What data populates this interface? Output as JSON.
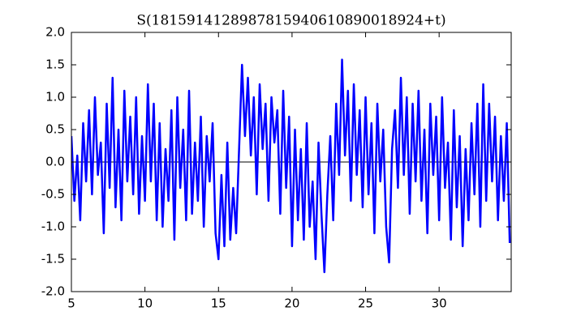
{
  "chart_data": {
    "type": "line",
    "title": "S(1815914128987815940610890018924+t)",
    "x": [
      5,
      5.2,
      5.4,
      5.6,
      5.8,
      6,
      6.2,
      6.4,
      6.6,
      6.8,
      7,
      7.2,
      7.4,
      7.6,
      7.8,
      8,
      8.2,
      8.4,
      8.6,
      8.8,
      9,
      9.2,
      9.4,
      9.6,
      9.8,
      10,
      10.2,
      10.4,
      10.6,
      10.8,
      11,
      11.2,
      11.4,
      11.6,
      11.8,
      12,
      12.2,
      12.4,
      12.6,
      12.8,
      13,
      13.2,
      13.4,
      13.6,
      13.8,
      14,
      14.2,
      14.4,
      14.6,
      14.8,
      15,
      15.2,
      15.4,
      15.6,
      15.8,
      16,
      16.2,
      16.4,
      16.6,
      16.8,
      17,
      17.2,
      17.4,
      17.6,
      17.8,
      18,
      18.2,
      18.4,
      18.6,
      18.8,
      19,
      19.2,
      19.4,
      19.6,
      19.8,
      20,
      20.2,
      20.4,
      20.6,
      20.8,
      21,
      21.2,
      21.4,
      21.6,
      21.8,
      22,
      22.2,
      22.4,
      22.6,
      22.8,
      23,
      23.2,
      23.4,
      23.6,
      23.8,
      24,
      24.2,
      24.4,
      24.6,
      24.8,
      25,
      25.2,
      25.4,
      25.6,
      25.8,
      26,
      26.2,
      26.4,
      26.6,
      26.8,
      27,
      27.2,
      27.4,
      27.6,
      27.8,
      28,
      28.2,
      28.4,
      28.6,
      28.8,
      29,
      29.2,
      29.4,
      29.6,
      29.8,
      30,
      30.2,
      30.4,
      30.6,
      30.8,
      31,
      31.2,
      31.4,
      31.6,
      31.8,
      32,
      32.2,
      32.4,
      32.6,
      32.8,
      33,
      33.2,
      33.4,
      33.6,
      33.8,
      34,
      34.2,
      34.4,
      34.6,
      34.8
    ],
    "series": [
      {
        "color": "#0000ff",
        "values": [
          0.4,
          -0.6,
          0.1,
          -0.9,
          0.6,
          -0.3,
          0.8,
          -0.5,
          1.0,
          -0.2,
          0.3,
          -1.1,
          0.9,
          -0.4,
          1.3,
          -0.7,
          0.5,
          -0.9,
          1.1,
          -0.3,
          0.7,
          -0.5,
          1.0,
          -0.8,
          0.4,
          -0.6,
          1.2,
          -0.3,
          0.9,
          -0.9,
          0.6,
          -1.0,
          0.2,
          -0.6,
          0.8,
          -1.2,
          1.0,
          -0.4,
          0.5,
          -0.9,
          1.1,
          -0.8,
          0.3,
          -0.6,
          0.7,
          -1.0,
          0.4,
          -0.3,
          0.6,
          -1.1,
          -1.5,
          -0.2,
          -1.3,
          0.3,
          -1.2,
          -0.4,
          -1.1,
          0.2,
          1.5,
          0.4,
          1.3,
          0.1,
          1.0,
          -0.5,
          1.2,
          0.2,
          0.9,
          -0.6,
          1.0,
          0.3,
          0.8,
          -0.8,
          1.1,
          -0.4,
          0.7,
          -1.3,
          0.5,
          -0.9,
          0.2,
          -1.2,
          0.6,
          -1.0,
          -0.3,
          -1.5,
          0.3,
          -0.8,
          -1.7,
          -0.5,
          0.4,
          -0.9,
          0.9,
          -0.2,
          1.58,
          0.1,
          1.1,
          -0.6,
          1.2,
          -0.2,
          0.8,
          -0.7,
          1.0,
          -0.5,
          0.6,
          -1.1,
          0.9,
          -0.3,
          0.5,
          -1.0,
          -1.55,
          0.2,
          0.8,
          -0.4,
          1.3,
          -0.2,
          1.0,
          -0.8,
          0.9,
          -0.3,
          1.1,
          -0.6,
          0.5,
          -1.1,
          0.9,
          -0.2,
          0.7,
          -0.9,
          1.0,
          -0.4,
          0.3,
          -1.2,
          0.8,
          -0.7,
          0.4,
          -1.3,
          0.2,
          -0.9,
          0.6,
          -0.5,
          0.9,
          -1.0,
          1.2,
          -0.6,
          0.9,
          -0.3,
          0.7,
          -0.9,
          0.4,
          -0.6,
          0.6,
          -1.25
        ]
      }
    ],
    "hline": 0,
    "xlim": [
      5,
      34.9
    ],
    "ylim": [
      -2,
      2
    ],
    "xticks": [
      5,
      10,
      15,
      20,
      25,
      30
    ],
    "yticks": [
      {
        "value": -2,
        "label": "-2.0"
      },
      {
        "value": -1.5,
        "label": "-1.5"
      },
      {
        "value": -1,
        "label": "-1.0"
      },
      {
        "value": -0.5,
        "label": "-0.5"
      },
      {
        "value": 0,
        "label": "0.0"
      },
      {
        "value": 0.5,
        "label": "0.5"
      },
      {
        "value": 1,
        "label": "1.0"
      },
      {
        "value": 1.5,
        "label": "1.5"
      },
      {
        "value": 2,
        "label": "2.0"
      }
    ]
  }
}
